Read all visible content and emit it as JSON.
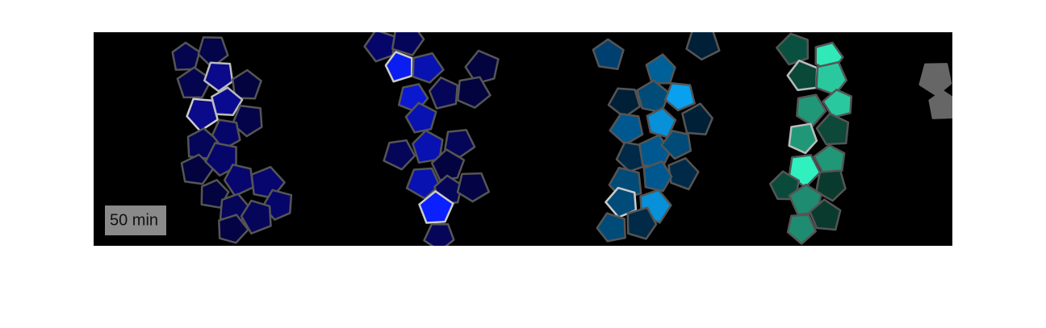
{
  "panel": {
    "time_label": "50 min"
  }
}
